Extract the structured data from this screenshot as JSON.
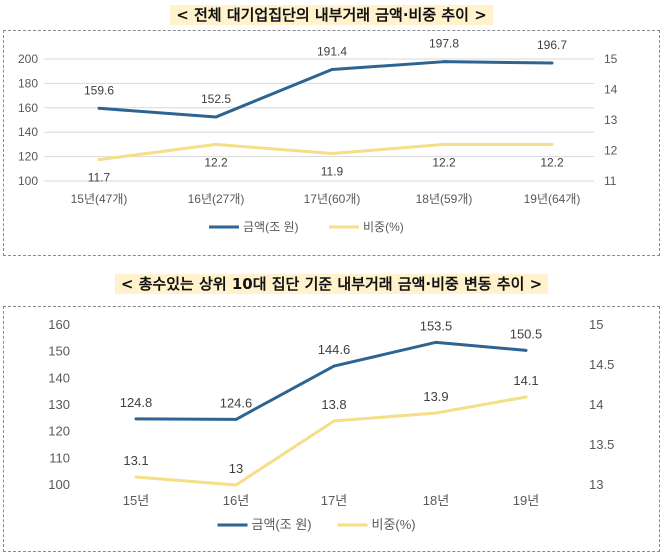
{
  "titles": {
    "top": "< 전체 대기업집단의 내부거래 금액·비중 추이 >",
    "bottom": "< 총수있는 상위 10대 집단 기준 내부거래 금액·비중 변동 추이 >"
  },
  "colors": {
    "amount": "#2e6491",
    "ratio": "#f5de86"
  },
  "chart_data": [
    {
      "type": "line",
      "categories": [
        "15년(47개)",
        "16년(27개)",
        "17년(60개)",
        "18년(59개)",
        "19년(64개)"
      ],
      "series": [
        {
          "name": "금액(조 원)",
          "axis": "left",
          "values": [
            159.6,
            152.5,
            191.4,
            197.8,
            196.7
          ],
          "labels": [
            "159.6",
            "152.5",
            "191.4",
            "197.8",
            "196.7"
          ]
        },
        {
          "name": "비중(%)",
          "axis": "right",
          "values": [
            11.7,
            12.2,
            11.9,
            12.2,
            12.2
          ],
          "labels": [
            "11.7",
            "12.2",
            "11.9",
            "12.2",
            "12.2"
          ]
        }
      ],
      "ylim_left": [
        100,
        200
      ],
      "yticks_left": [
        "100",
        "120",
        "140",
        "160",
        "180",
        "200"
      ],
      "ylim_right": [
        11,
        15
      ],
      "yticks_right": [
        "11",
        "12",
        "13",
        "14",
        "15"
      ],
      "grid": true,
      "legend": "bottom"
    },
    {
      "type": "line",
      "categories": [
        "15년",
        "16년",
        "17년",
        "18년",
        "19년"
      ],
      "series": [
        {
          "name": "금액(조 원)",
          "axis": "left",
          "values": [
            124.8,
            124.6,
            144.6,
            153.5,
            150.5
          ],
          "labels": [
            "124.8",
            "124.6",
            "144.6",
            "153.5",
            "150.5"
          ]
        },
        {
          "name": "비중(%)",
          "axis": "right",
          "values": [
            13.1,
            13.0,
            13.8,
            13.9,
            14.1
          ],
          "labels": [
            "13.1",
            "13",
            "13.8",
            "13.9",
            "14.1"
          ]
        }
      ],
      "ylim_left": [
        100,
        160
      ],
      "yticks_left": [
        "100",
        "110",
        "120",
        "130",
        "140",
        "150",
        "160"
      ],
      "ylim_right": [
        13,
        15
      ],
      "yticks_right": [
        "13",
        "13.5",
        "14",
        "14.5",
        "15"
      ],
      "grid": false,
      "legend": "bottom"
    }
  ]
}
